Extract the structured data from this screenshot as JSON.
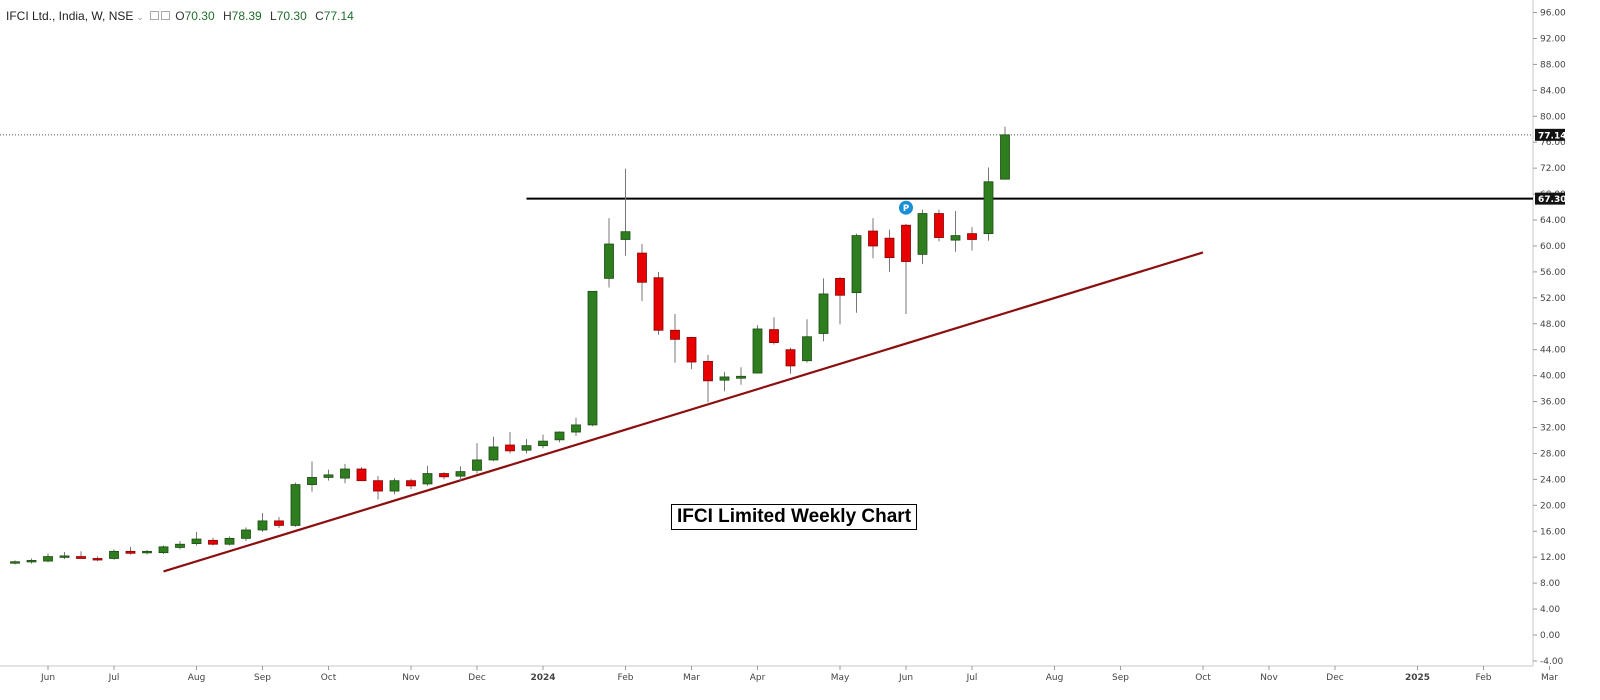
{
  "header": {
    "symbol": "IFCI Ltd., India, W, NSE",
    "open_label": "O",
    "open": "70.30",
    "high_label": "H",
    "high": "78.39",
    "low_label": "L",
    "low": "70.30",
    "close_label": "C",
    "close": "77.14"
  },
  "annotation": "IFCI Limited Weekly Chart",
  "marker_label": "P",
  "chart_data": {
    "type": "candlestick",
    "title": "IFCI Ltd., India, W, NSE",
    "y_ticks": [
      "96.00",
      "92.00",
      "88.00",
      "84.00",
      "80.00",
      "76.00",
      "72.00",
      "68.00",
      "64.00",
      "60.00",
      "56.00",
      "52.00",
      "48.00",
      "44.00",
      "40.00",
      "36.00",
      "32.00",
      "28.00",
      "24.00",
      "20.00",
      "16.00",
      "12.00",
      "8.00",
      "4.00",
      "0.00",
      "-4.00"
    ],
    "y_tick_values": [
      96,
      92,
      88,
      84,
      80,
      76,
      72,
      68,
      64,
      60,
      56,
      52,
      48,
      44,
      40,
      36,
      32,
      28,
      24,
      20,
      16,
      12,
      8,
      4,
      0,
      -4
    ],
    "ylim": [
      -4,
      96
    ],
    "x_labels": [
      {
        "label": "Jun",
        "week": 2
      },
      {
        "label": "Jul",
        "week": 6
      },
      {
        "label": "Aug",
        "week": 11
      },
      {
        "label": "Sep",
        "week": 15
      },
      {
        "label": "Oct",
        "week": 19
      },
      {
        "label": "Nov",
        "week": 24
      },
      {
        "label": "Dec",
        "week": 28
      },
      {
        "label": "2024",
        "week": 32
      },
      {
        "label": "Feb",
        "week": 37
      },
      {
        "label": "Mar",
        "week": 41
      },
      {
        "label": "Apr",
        "week": 45
      },
      {
        "label": "May",
        "week": 50
      },
      {
        "label": "Jun",
        "week": 54
      },
      {
        "label": "Jul",
        "week": 58
      },
      {
        "label": "Aug",
        "week": 63
      },
      {
        "label": "Sep",
        "week": 67
      },
      {
        "label": "Oct",
        "week": 72
      },
      {
        "label": "Nov",
        "week": 76
      },
      {
        "label": "Dec",
        "week": 80
      },
      {
        "label": "2025",
        "week": 85
      },
      {
        "label": "Feb",
        "week": 89
      },
      {
        "label": "Mar",
        "week": 93
      }
    ],
    "candles": [
      {
        "o": 11.1,
        "h": 11.5,
        "l": 10.9,
        "c": 11.3
      },
      {
        "o": 11.3,
        "h": 11.8,
        "l": 11.0,
        "c": 11.5
      },
      {
        "o": 11.4,
        "h": 12.6,
        "l": 11.2,
        "c": 12.1
      },
      {
        "o": 12.0,
        "h": 12.8,
        "l": 11.7,
        "c": 12.2
      },
      {
        "o": 12.1,
        "h": 12.9,
        "l": 11.8,
        "c": 11.8
      },
      {
        "o": 11.8,
        "h": 12.1,
        "l": 11.4,
        "c": 11.6
      },
      {
        "o": 11.8,
        "h": 13.2,
        "l": 11.6,
        "c": 12.9
      },
      {
        "o": 12.9,
        "h": 13.6,
        "l": 12.4,
        "c": 12.6
      },
      {
        "o": 12.7,
        "h": 13.1,
        "l": 12.4,
        "c": 12.9
      },
      {
        "o": 12.7,
        "h": 13.8,
        "l": 12.5,
        "c": 13.6
      },
      {
        "o": 13.5,
        "h": 14.5,
        "l": 13.2,
        "c": 14.0
      },
      {
        "o": 14.1,
        "h": 15.9,
        "l": 13.8,
        "c": 14.8
      },
      {
        "o": 14.6,
        "h": 15.0,
        "l": 13.8,
        "c": 14.0
      },
      {
        "o": 14.0,
        "h": 15.2,
        "l": 13.8,
        "c": 14.9
      },
      {
        "o": 14.9,
        "h": 16.6,
        "l": 14.5,
        "c": 16.2
      },
      {
        "o": 16.2,
        "h": 18.8,
        "l": 15.9,
        "c": 17.6
      },
      {
        "o": 17.6,
        "h": 18.2,
        "l": 16.5,
        "c": 16.9
      },
      {
        "o": 16.9,
        "h": 23.5,
        "l": 16.7,
        "c": 23.2
      },
      {
        "o": 23.2,
        "h": 26.8,
        "l": 22.1,
        "c": 24.3
      },
      {
        "o": 24.3,
        "h": 25.5,
        "l": 23.8,
        "c": 24.7
      },
      {
        "o": 24.2,
        "h": 26.4,
        "l": 23.4,
        "c": 25.6
      },
      {
        "o": 25.6,
        "h": 25.9,
        "l": 23.9,
        "c": 23.8
      },
      {
        "o": 23.8,
        "h": 24.5,
        "l": 20.9,
        "c": 22.2
      },
      {
        "o": 22.2,
        "h": 24.2,
        "l": 21.7,
        "c": 23.8
      },
      {
        "o": 23.8,
        "h": 24.1,
        "l": 22.5,
        "c": 23.0
      },
      {
        "o": 23.3,
        "h": 26.1,
        "l": 23.0,
        "c": 24.9
      },
      {
        "o": 24.9,
        "h": 25.1,
        "l": 24.0,
        "c": 24.4
      },
      {
        "o": 24.5,
        "h": 26.0,
        "l": 23.8,
        "c": 25.2
      },
      {
        "o": 25.4,
        "h": 29.6,
        "l": 24.9,
        "c": 27.0
      },
      {
        "o": 27.0,
        "h": 30.6,
        "l": 26.8,
        "c": 29.0
      },
      {
        "o": 29.3,
        "h": 31.3,
        "l": 28.0,
        "c": 28.4
      },
      {
        "o": 28.5,
        "h": 30.2,
        "l": 28.0,
        "c": 29.2
      },
      {
        "o": 29.2,
        "h": 30.9,
        "l": 28.8,
        "c": 29.9
      },
      {
        "o": 30.1,
        "h": 31.4,
        "l": 29.7,
        "c": 31.3
      },
      {
        "o": 31.3,
        "h": 33.5,
        "l": 30.7,
        "c": 32.4
      },
      {
        "o": 32.4,
        "h": 53.0,
        "l": 32.2,
        "c": 53.0
      },
      {
        "o": 55.0,
        "h": 64.3,
        "l": 53.6,
        "c": 60.3
      },
      {
        "o": 61.0,
        "h": 71.9,
        "l": 58.5,
        "c": 62.2
      },
      {
        "o": 58.9,
        "h": 60.3,
        "l": 51.5,
        "c": 54.4
      },
      {
        "o": 55.1,
        "h": 56.0,
        "l": 46.3,
        "c": 47.0
      },
      {
        "o": 47.0,
        "h": 49.5,
        "l": 42.0,
        "c": 45.6
      },
      {
        "o": 45.9,
        "h": 46.0,
        "l": 41.0,
        "c": 42.1
      },
      {
        "o": 42.2,
        "h": 43.2,
        "l": 35.9,
        "c": 39.2
      },
      {
        "o": 39.3,
        "h": 40.6,
        "l": 37.6,
        "c": 39.8
      },
      {
        "o": 39.6,
        "h": 41.3,
        "l": 38.6,
        "c": 39.9
      },
      {
        "o": 40.4,
        "h": 47.8,
        "l": 40.4,
        "c": 47.2
      },
      {
        "o": 47.1,
        "h": 49.0,
        "l": 44.8,
        "c": 45.1
      },
      {
        "o": 44.0,
        "h": 44.3,
        "l": 40.3,
        "c": 41.5
      },
      {
        "o": 42.3,
        "h": 48.7,
        "l": 42.0,
        "c": 46.0
      },
      {
        "o": 46.5,
        "h": 55.0,
        "l": 45.3,
        "c": 52.6
      },
      {
        "o": 55.0,
        "h": 55.2,
        "l": 47.9,
        "c": 52.4
      },
      {
        "o": 52.8,
        "h": 61.9,
        "l": 49.7,
        "c": 61.6
      },
      {
        "o": 62.3,
        "h": 64.3,
        "l": 58.1,
        "c": 60.0
      },
      {
        "o": 61.2,
        "h": 62.5,
        "l": 56.0,
        "c": 58.2
      },
      {
        "o": 63.2,
        "h": 63.4,
        "l": 49.5,
        "c": 57.6
      },
      {
        "o": 58.7,
        "h": 65.6,
        "l": 57.2,
        "c": 65.0
      },
      {
        "o": 65.0,
        "h": 65.6,
        "l": 60.7,
        "c": 61.3
      },
      {
        "o": 60.9,
        "h": 65.4,
        "l": 59.1,
        "c": 61.6
      },
      {
        "o": 61.9,
        "h": 62.9,
        "l": 59.3,
        "c": 61.0
      },
      {
        "o": 61.9,
        "h": 72.1,
        "l": 60.8,
        "c": 69.9
      },
      {
        "o": 70.3,
        "h": 78.39,
        "l": 70.3,
        "c": 77.14
      }
    ],
    "resistance_level": 67.3,
    "resistance_label": "67.30",
    "resistance_from_week": 31,
    "last_price": 77.14,
    "last_price_label": "77.14",
    "trendline": [
      {
        "week": 9,
        "price": 9.8
      },
      {
        "week": 72,
        "price": 59.0
      }
    ],
    "marker": {
      "week": 54,
      "price": 65.9
    }
  }
}
